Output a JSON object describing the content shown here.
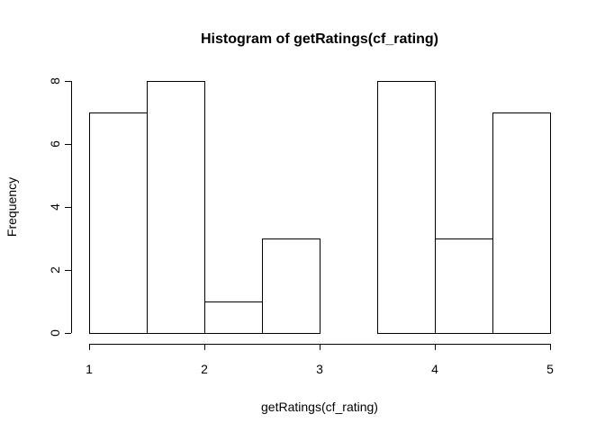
{
  "chart_data": {
    "type": "bar",
    "subtype": "histogram",
    "title": "Histogram of getRatings(cf_rating)",
    "xlabel": "getRatings(cf_rating)",
    "ylabel": "Frequency",
    "bins": [
      {
        "start": 1.0,
        "end": 1.5,
        "count": 7
      },
      {
        "start": 1.5,
        "end": 2.0,
        "count": 8
      },
      {
        "start": 2.0,
        "end": 2.5,
        "count": 1
      },
      {
        "start": 2.5,
        "end": 3.0,
        "count": 3
      },
      {
        "start": 3.0,
        "end": 3.5,
        "count": 0
      },
      {
        "start": 3.5,
        "end": 4.0,
        "count": 8
      },
      {
        "start": 4.0,
        "end": 4.5,
        "count": 3
      },
      {
        "start": 4.5,
        "end": 5.0,
        "count": 7
      }
    ],
    "xlim": [
      1,
      5
    ],
    "ylim": [
      0,
      8
    ],
    "x_ticks": [
      "1",
      "2",
      "3",
      "4",
      "5"
    ],
    "y_ticks": [
      "0",
      "2",
      "4",
      "6",
      "8"
    ],
    "grid": false,
    "colors": {
      "fill": "#ffffff",
      "stroke": "#000000"
    }
  }
}
